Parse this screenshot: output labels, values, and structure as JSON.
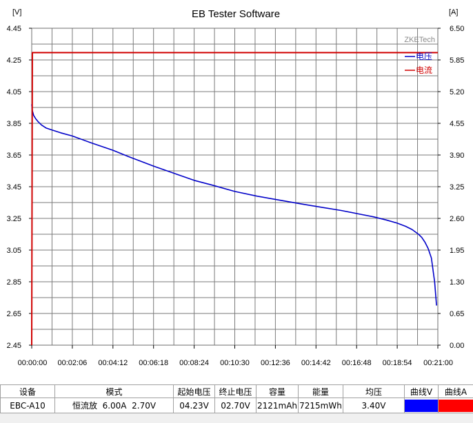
{
  "chart_data": {
    "type": "line",
    "title": "EB Tester Software",
    "watermark": "ZKETech",
    "y_left_unit": "[V]",
    "y_right_unit": "[A]",
    "ylim_left": [
      2.45,
      4.45
    ],
    "ylim_right": [
      0.0,
      6.5
    ],
    "yticks_left": [
      "4.45",
      "4.25",
      "4.05",
      "3.85",
      "3.65",
      "3.45",
      "3.25",
      "3.05",
      "2.85",
      "2.65",
      "2.45"
    ],
    "yticks_right": [
      "6.50",
      "5.85",
      "5.20",
      "4.55",
      "3.90",
      "3.25",
      "2.60",
      "1.95",
      "1.30",
      "0.65",
      "0.00"
    ],
    "xticks": [
      "00:00:00",
      "00:02:06",
      "00:04:12",
      "00:06:18",
      "00:08:24",
      "00:10:30",
      "00:12:36",
      "00:14:42",
      "00:16:48",
      "00:18:54",
      "00:21:00"
    ],
    "xlim_seconds": [
      0,
      1260
    ],
    "grid": true,
    "legend_position": "top-right",
    "series": [
      {
        "name": "电压",
        "axis": "left",
        "color": "#0000c8",
        "x": [
          0,
          2,
          6,
          12,
          20,
          30,
          45,
          60,
          90,
          126,
          180,
          252,
          300,
          378,
          420,
          504,
          560,
          630,
          700,
          756,
          840,
          900,
          960,
          1010,
          1060,
          1100,
          1134,
          1160,
          1180,
          1200,
          1210,
          1220,
          1230,
          1240,
          1250,
          1256
        ],
        "y": [
          3.97,
          3.93,
          3.9,
          3.88,
          3.86,
          3.84,
          3.82,
          3.81,
          3.79,
          3.77,
          3.73,
          3.68,
          3.64,
          3.58,
          3.55,
          3.49,
          3.46,
          3.42,
          3.39,
          3.37,
          3.34,
          3.32,
          3.3,
          3.28,
          3.26,
          3.24,
          3.22,
          3.2,
          3.18,
          3.15,
          3.13,
          3.1,
          3.06,
          3.0,
          2.85,
          2.7
        ]
      },
      {
        "name": "电流",
        "axis": "right",
        "color": "#d00000",
        "x": [
          0,
          2,
          1260
        ],
        "y": [
          0.0,
          6.0,
          6.0
        ]
      }
    ]
  },
  "info_table": {
    "headers": [
      "设备",
      "模式",
      "起始电压",
      "终止电压",
      "容量",
      "能量",
      "均压",
      "曲线V",
      "曲线A"
    ],
    "device": "EBC-A10",
    "mode": "恒流放  6.00A  2.70V",
    "start_voltage": "04.23V",
    "end_voltage": "02.70V",
    "capacity": "2121mAh",
    "energy": "7215mWh",
    "avg_voltage": "3.40V",
    "curve_v_color": "#0000ff",
    "curve_a_color": "#ff0000"
  }
}
